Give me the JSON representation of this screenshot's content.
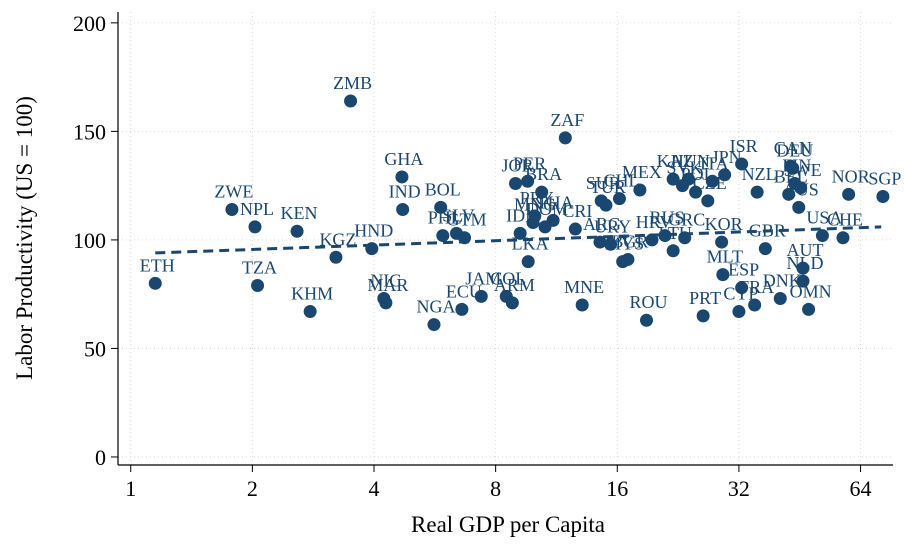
{
  "chart_data": {
    "type": "scatter",
    "x_label": "Real GDP per Capita",
    "y_label": "Labor Productivity (US = 100)",
    "x_log_base": 2,
    "xlim": [
      0.93,
      77
    ],
    "ylim": [
      -3.7,
      205
    ],
    "xticks": [
      1,
      2,
      4,
      8,
      16,
      32,
      64
    ],
    "yticks": [
      0,
      50,
      100,
      150,
      200
    ],
    "grid": true,
    "color": "#1a476f",
    "fit_line": {
      "x": [
        1.15,
        72
      ],
      "y": [
        94,
        106
      ],
      "dashed": true
    },
    "points": {
      "labels": [
        "ETH",
        "ZWE",
        "NPL",
        "KEN",
        "TZA",
        "KHM",
        "KGZ",
        "ZMB",
        "HND",
        "NIC",
        "MAR",
        "GHA",
        "IND",
        "NGA",
        "BOL",
        "PHL",
        "SLV",
        "GTM",
        "ECU",
        "JAM",
        "COL",
        "ARM",
        "LKA",
        "MNE",
        "ROU",
        "PRT",
        "ZAF",
        "JOR",
        "PER",
        "BRA",
        "THA",
        "IDN",
        "MNG",
        "DOM",
        "PRY",
        "CRI",
        "ARG",
        "URY",
        "CHL",
        "BGR",
        "MYS",
        "SUR",
        "TUR",
        "MEX",
        "HRV",
        "RUS",
        "LTU",
        "GRC",
        "KAZ",
        "POL",
        "HUN",
        "SVK",
        "CZE",
        "KOR",
        "ITA",
        "JPN",
        "ISR",
        "NZL",
        "GBR",
        "MLT",
        "ESP",
        "CYP",
        "FRA",
        "DNK",
        "CAN",
        "BEL",
        "FIN",
        "SWE",
        "AUS",
        "DEU",
        "AUT",
        "NLD",
        "OMN",
        "USA",
        "CHE",
        "NOR",
        "SGP"
      ],
      "x": [
        1.15,
        1.78,
        2.03,
        2.58,
        2.06,
        2.78,
        3.22,
        3.5,
        3.95,
        4.23,
        4.28,
        4.69,
        4.71,
        5.63,
        5.85,
        5.92,
        6.4,
        6.7,
        6.6,
        7.37,
        8.5,
        8.8,
        9.63,
        13.1,
        18.9,
        26.1,
        11.9,
        8.96,
        9.6,
        10.4,
        11.1,
        9.2,
        9.9,
        10.6,
        10.0,
        12.6,
        14.5,
        15.4,
        16.2,
        17.0,
        16.5,
        14.6,
        15.0,
        18.2,
        19.5,
        21.0,
        22.0,
        23.5,
        22.0,
        25.0,
        24.0,
        23.2,
        26.8,
        29.0,
        27.5,
        29.5,
        32.5,
        35.5,
        37.2,
        29.2,
        32.5,
        32.0,
        35.0,
        40.5,
        43.0,
        42.5,
        44.0,
        45.5,
        45.0,
        43.5,
        46.1,
        46.1,
        47.6,
        51.5,
        57.9,
        59.8,
        72.7
      ],
      "y": [
        80,
        114,
        106,
        104,
        79,
        67,
        92,
        164,
        96,
        73,
        71,
        129,
        114,
        61,
        115,
        102,
        103,
        101,
        68,
        74,
        74,
        71,
        90,
        70,
        63,
        65,
        147,
        126,
        127,
        122,
        109,
        103,
        108,
        106,
        111,
        105,
        99,
        98,
        119,
        91,
        90,
        118,
        116,
        123,
        100,
        102,
        95,
        101,
        128,
        122,
        128,
        125,
        118,
        99,
        127,
        130,
        135,
        122,
        96,
        84,
        78,
        67,
        70,
        73,
        134,
        121,
        126,
        124,
        115,
        133,
        87,
        81,
        68,
        102,
        101,
        121,
        120
      ]
    }
  }
}
